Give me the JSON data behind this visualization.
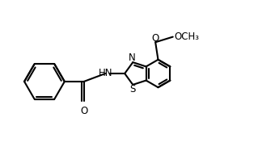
{
  "background_color": "#ffffff",
  "line_color": "#000000",
  "line_width": 1.5,
  "font_size": 8.5,
  "figsize": [
    3.19,
    1.82
  ],
  "dpi": 100,
  "xlim": [
    0,
    9.5
  ],
  "ylim": [
    0,
    5.4
  ]
}
